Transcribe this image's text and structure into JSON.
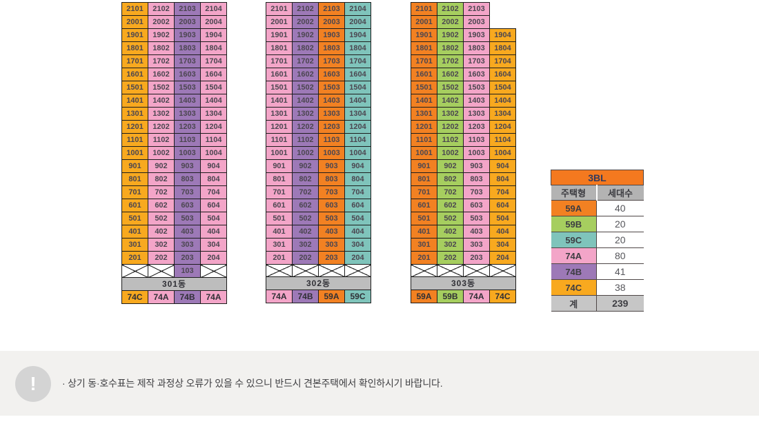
{
  "page": {
    "background": "#ffffff",
    "footer_background": "#f2f1ef",
    "note": {
      "icon": "!",
      "text": "· 상기 동·호수표는 제작 과정상 오류가 있을 수 있으니 반드시 견본주택에서 확인하시기 바랍니다."
    }
  },
  "colors": {
    "59A": "#f28122",
    "59B": "#a6ce5f",
    "59C": "#7fc4bb",
    "74A": "#f3a5c8",
    "74B": "#9d79b7",
    "74C": "#f8a91f",
    "building_row": "#bdbdbd",
    "legend_header": "#f4791f",
    "legend_subheader": "#b3b3b3",
    "legend_total": "#c6c6c6",
    "cell_border": "#1c1c1c"
  },
  "chart_data": [
    {
      "type": "table",
      "title": "301동",
      "stack_types": [
        "74C",
        "74A",
        "74B",
        "74A"
      ],
      "rows": [
        [
          "2101",
          "2102",
          "2103",
          "2104"
        ],
        [
          "2001",
          "2002",
          "2003",
          "2004"
        ],
        [
          "1901",
          "1902",
          "1903",
          "1904"
        ],
        [
          "1801",
          "1802",
          "1803",
          "1804"
        ],
        [
          "1701",
          "1702",
          "1703",
          "1704"
        ],
        [
          "1601",
          "1602",
          "1603",
          "1604"
        ],
        [
          "1501",
          "1502",
          "1503",
          "1504"
        ],
        [
          "1401",
          "1402",
          "1403",
          "1404"
        ],
        [
          "1301",
          "1302",
          "1303",
          "1304"
        ],
        [
          "1201",
          "1202",
          "1203",
          "1204"
        ],
        [
          "1101",
          "1102",
          "1103",
          "1104"
        ],
        [
          "1001",
          "1002",
          "1003",
          "1004"
        ],
        [
          "901",
          "902",
          "903",
          "904"
        ],
        [
          "801",
          "802",
          "803",
          "804"
        ],
        [
          "701",
          "702",
          "703",
          "704"
        ],
        [
          "601",
          "602",
          "603",
          "604"
        ],
        [
          "501",
          "502",
          "503",
          "504"
        ],
        [
          "401",
          "402",
          "403",
          "404"
        ],
        [
          "301",
          "302",
          "303",
          "304"
        ],
        [
          "201",
          "202",
          "203",
          "204"
        ],
        [
          "X",
          "X",
          "103",
          "X"
        ]
      ],
      "footer": [
        "74C",
        "74A",
        "74B",
        "74A"
      ]
    },
    {
      "type": "table",
      "title": "302동",
      "stack_types": [
        "74A",
        "74B",
        "59A",
        "59C"
      ],
      "rows": [
        [
          "2101",
          "2102",
          "2103",
          "2104"
        ],
        [
          "2001",
          "2002",
          "2003",
          "2004"
        ],
        [
          "1901",
          "1902",
          "1903",
          "1904"
        ],
        [
          "1801",
          "1802",
          "1803",
          "1804"
        ],
        [
          "1701",
          "1702",
          "1703",
          "1704"
        ],
        [
          "1601",
          "1602",
          "1603",
          "1604"
        ],
        [
          "1501",
          "1502",
          "1503",
          "1504"
        ],
        [
          "1401",
          "1402",
          "1403",
          "1404"
        ],
        [
          "1301",
          "1302",
          "1303",
          "1304"
        ],
        [
          "1201",
          "1202",
          "1203",
          "1204"
        ],
        [
          "1101",
          "1102",
          "1103",
          "1104"
        ],
        [
          "1001",
          "1002",
          "1003",
          "1004"
        ],
        [
          "901",
          "902",
          "903",
          "904"
        ],
        [
          "801",
          "802",
          "803",
          "804"
        ],
        [
          "701",
          "702",
          "703",
          "704"
        ],
        [
          "601",
          "602",
          "603",
          "604"
        ],
        [
          "501",
          "502",
          "503",
          "504"
        ],
        [
          "401",
          "402",
          "403",
          "404"
        ],
        [
          "301",
          "302",
          "303",
          "304"
        ],
        [
          "201",
          "202",
          "203",
          "204"
        ],
        [
          "X",
          "X",
          "X",
          "X"
        ]
      ],
      "footer": [
        "74A",
        "74B",
        "59A",
        "59C"
      ]
    },
    {
      "type": "table",
      "title": "303동",
      "stack_types": [
        "59A",
        "59B",
        "74A",
        "74C"
      ],
      "rows": [
        [
          "2101",
          "2102",
          "2103",
          ""
        ],
        [
          "2001",
          "2002",
          "2003",
          ""
        ],
        [
          "1901",
          "1902",
          "1903",
          "1904"
        ],
        [
          "1801",
          "1802",
          "1803",
          "1804"
        ],
        [
          "1701",
          "1702",
          "1703",
          "1704"
        ],
        [
          "1601",
          "1602",
          "1603",
          "1604"
        ],
        [
          "1501",
          "1502",
          "1503",
          "1504"
        ],
        [
          "1401",
          "1402",
          "1403",
          "1404"
        ],
        [
          "1301",
          "1302",
          "1303",
          "1304"
        ],
        [
          "1201",
          "1202",
          "1203",
          "1204"
        ],
        [
          "1101",
          "1102",
          "1103",
          "1104"
        ],
        [
          "1001",
          "1002",
          "1003",
          "1004"
        ],
        [
          "901",
          "902",
          "903",
          "904"
        ],
        [
          "801",
          "802",
          "803",
          "804"
        ],
        [
          "701",
          "702",
          "703",
          "704"
        ],
        [
          "601",
          "602",
          "603",
          "604"
        ],
        [
          "501",
          "502",
          "503",
          "504"
        ],
        [
          "401",
          "402",
          "403",
          "404"
        ],
        [
          "301",
          "302",
          "303",
          "304"
        ],
        [
          "201",
          "202",
          "203",
          "204"
        ],
        [
          "X",
          "X",
          "X",
          "X"
        ]
      ],
      "footer": [
        "59A",
        "59B",
        "74A",
        "74C"
      ]
    },
    {
      "type": "table",
      "title": "3BL",
      "columns": [
        "주택형",
        "세대수"
      ],
      "rows": [
        [
          "59A",
          "40"
        ],
        [
          "59B",
          "20"
        ],
        [
          "59C",
          "20"
        ],
        [
          "74A",
          "80"
        ],
        [
          "74B",
          "41"
        ],
        [
          "74C",
          "38"
        ]
      ],
      "total_row": [
        "계",
        "239"
      ]
    }
  ]
}
